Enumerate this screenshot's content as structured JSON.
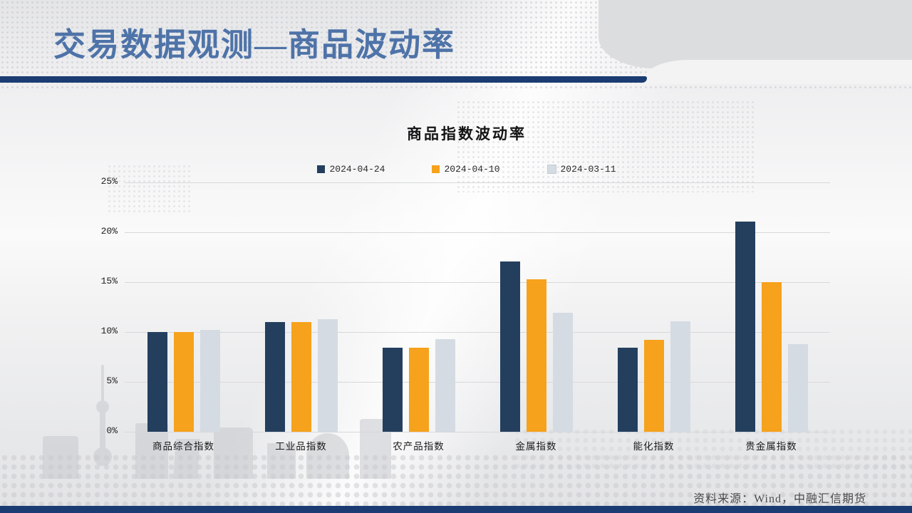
{
  "header": {
    "title": "交易数据观测—商品波动率"
  },
  "footer": {
    "source": "资料来源：Wind，中融汇信期货"
  },
  "colors": {
    "title_blue": "#4e73a8",
    "divider_navy": "#1b3c72",
    "bottom_bar_navy": "#1b3c72",
    "series_navy": "#243f5e",
    "series_orange": "#f6a21c",
    "series_gray": "#d5dbe3",
    "gridline_gray": "#d7d8da"
  },
  "chart_data": {
    "type": "bar",
    "title": "商品指数波动率",
    "categories": [
      "商品综合指数",
      "工业品指数",
      "农产品指数",
      "金属指数",
      "能化指数",
      "贵金属指数"
    ],
    "series": [
      {
        "name": "2024-04-24",
        "color": "#243f5e",
        "values": [
          10.0,
          11.0,
          8.4,
          17.1,
          8.4,
          21.1
        ]
      },
      {
        "name": "2024-04-10",
        "color": "#f6a21c",
        "values": [
          10.0,
          11.0,
          8.4,
          15.3,
          9.2,
          15.0
        ]
      },
      {
        "name": "2024-03-11",
        "color": "#d5dbe3",
        "values": [
          10.2,
          11.3,
          9.3,
          11.9,
          11.1,
          8.8
        ]
      }
    ],
    "ylim": [
      0,
      25
    ],
    "yticks": [
      0,
      5,
      10,
      15,
      20,
      25
    ],
    "ytick_labels": [
      "0%",
      "5%",
      "10%",
      "15%",
      "20%",
      "25%"
    ],
    "xlabel": "",
    "ylabel": "",
    "grid": true,
    "legend_position": "top-center"
  }
}
